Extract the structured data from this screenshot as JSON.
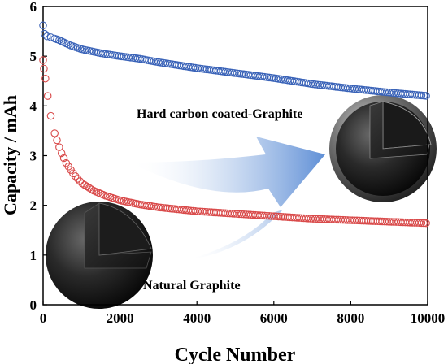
{
  "chart_data": {
    "type": "scatter",
    "xlabel": "Cycle Number",
    "ylabel": "Capacity / mAh",
    "xlim": [
      0,
      10000
    ],
    "ylim": [
      0,
      6
    ],
    "xticks": [
      "0",
      "2000",
      "4000",
      "6000",
      "8000",
      "10000"
    ],
    "yticks": [
      "0",
      "1",
      "2",
      "3",
      "4",
      "5",
      "6"
    ],
    "grid": false,
    "marker": "open-circle",
    "series": [
      {
        "color": "#3a63b8",
        "label": "Hard carbon coated-Graphite",
        "points": [
          [
            0,
            5.62
          ],
          [
            40,
            5.45
          ],
          [
            100,
            5.4
          ],
          [
            200,
            5.38
          ],
          [
            400,
            5.33
          ],
          [
            700,
            5.22
          ],
          [
            1000,
            5.14
          ],
          [
            1500,
            5.06
          ],
          [
            2000,
            5.0
          ],
          [
            2500,
            4.95
          ],
          [
            3000,
            4.88
          ],
          [
            3500,
            4.82
          ],
          [
            4000,
            4.76
          ],
          [
            5000,
            4.66
          ],
          [
            6000,
            4.56
          ],
          [
            7000,
            4.44
          ],
          [
            8000,
            4.35
          ],
          [
            9000,
            4.27
          ],
          [
            10000,
            4.2
          ]
        ]
      },
      {
        "color": "#d94a4a",
        "label": "Natural Graphite",
        "points": [
          [
            0,
            4.92
          ],
          [
            20,
            4.75
          ],
          [
            60,
            4.55
          ],
          [
            120,
            4.2
          ],
          [
            200,
            3.8
          ],
          [
            300,
            3.45
          ],
          [
            450,
            3.1
          ],
          [
            600,
            2.85
          ],
          [
            800,
            2.62
          ],
          [
            1000,
            2.45
          ],
          [
            1300,
            2.3
          ],
          [
            1600,
            2.2
          ],
          [
            2000,
            2.1
          ],
          [
            2500,
            2.02
          ],
          [
            3000,
            1.96
          ],
          [
            4000,
            1.88
          ],
          [
            5000,
            1.83
          ],
          [
            6000,
            1.78
          ],
          [
            7000,
            1.73
          ],
          [
            8000,
            1.7
          ],
          [
            9000,
            1.67
          ],
          [
            10000,
            1.64
          ]
        ]
      }
    ]
  }
}
